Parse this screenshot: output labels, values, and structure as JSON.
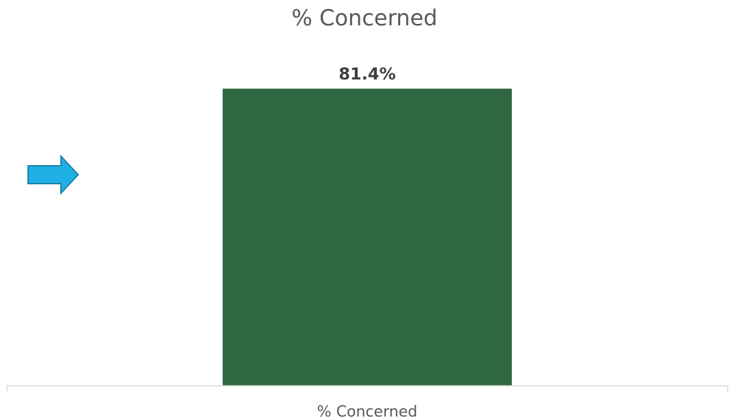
{
  "chart_data": {
    "type": "bar",
    "title": "% Concerned",
    "categories": [
      "% Concerned"
    ],
    "series": [
      {
        "values": [
          81.4
        ],
        "data_labels": [
          "81.4%"
        ],
        "color": "#2f6840"
      }
    ],
    "ylim": [
      0,
      100
    ],
    "grid": false,
    "legend": "none"
  },
  "colors": {
    "bar": "#2f6840",
    "bar_border": "#255433",
    "arrow_fill": "#1fb0e6",
    "arrow_stroke": "#1b7fa6",
    "axis": "#d9d9d9"
  },
  "annotations": {
    "arrow": "right-arrow-icon"
  }
}
